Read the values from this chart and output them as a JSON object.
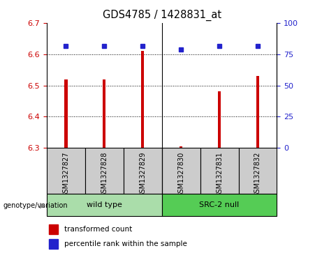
{
  "title": "GDS4785 / 1428831_at",
  "samples": [
    "GSM1327827",
    "GSM1327828",
    "GSM1327829",
    "GSM1327830",
    "GSM1327831",
    "GSM1327832"
  ],
  "bar_values": [
    6.52,
    6.52,
    6.61,
    6.305,
    6.48,
    6.53
  ],
  "percentile_values": [
    6.625,
    6.625,
    6.625,
    6.614,
    6.625,
    6.625
  ],
  "ylim_left": [
    6.3,
    6.7
  ],
  "ylim_right": [
    0,
    100
  ],
  "yticks_left": [
    6.3,
    6.4,
    6.5,
    6.6,
    6.7
  ],
  "yticks_right": [
    0,
    25,
    50,
    75,
    100
  ],
  "bar_color": "#cc0000",
  "percentile_color": "#2222cc",
  "bar_width": 0.08,
  "group1_color": "#aaddaa",
  "group2_color": "#55cc55",
  "label_bg_color": "#cccccc",
  "separator_after": 2,
  "left_tick_color": "#cc0000",
  "right_tick_color": "#2222cc",
  "genotype_label": "genotype/variation",
  "group_labels": [
    "wild type",
    "SRC-2 null"
  ],
  "legend_bar_label": "transformed count",
  "legend_percentile_label": "percentile rank within the sample"
}
